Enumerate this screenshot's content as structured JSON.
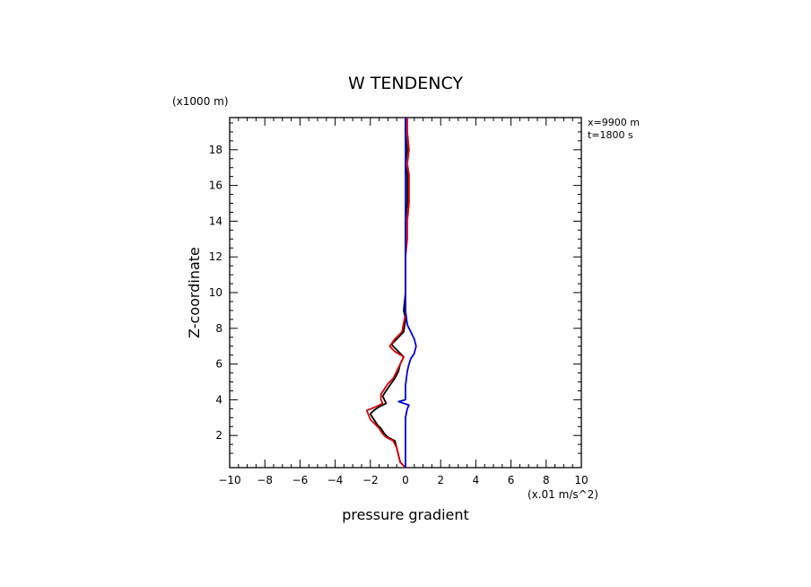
{
  "chart_data": {
    "type": "line",
    "title": "W TENDENCY",
    "xlabel": "pressure gradient",
    "ylabel": "Z-coordinate",
    "x_unit": "(x.01 m/s^2)",
    "y_unit": "(x1000 m)",
    "annotations": [
      "x=9900 m",
      "t=1800 s"
    ],
    "xlim": [
      -10,
      10
    ],
    "ylim": [
      0.2,
      19.8
    ],
    "xticks": [
      -10,
      -8,
      -6,
      -4,
      -2,
      0,
      2,
      4,
      6,
      8,
      10
    ],
    "yticks": [
      2,
      4,
      6,
      8,
      10,
      12,
      14,
      16,
      18
    ],
    "grid": false,
    "series": [
      {
        "color": "#000000",
        "points": [
          [
            0.0,
            0.2
          ],
          [
            -0.3,
            0.5
          ],
          [
            -0.4,
            0.9
          ],
          [
            -0.5,
            1.3
          ],
          [
            -0.6,
            1.7
          ],
          [
            -1.0,
            1.9
          ],
          [
            -1.2,
            2.1
          ],
          [
            -1.4,
            2.4
          ],
          [
            -1.6,
            2.6
          ],
          [
            -1.8,
            2.9
          ],
          [
            -2.0,
            3.2
          ],
          [
            -1.8,
            3.4
          ],
          [
            -1.5,
            3.6
          ],
          [
            -1.1,
            3.8
          ],
          [
            -1.2,
            4.0
          ],
          [
            -1.3,
            4.2
          ],
          [
            -1.1,
            4.5
          ],
          [
            -0.9,
            4.8
          ],
          [
            -0.6,
            5.2
          ],
          [
            -0.4,
            5.6
          ],
          [
            -0.3,
            6.0
          ],
          [
            -0.1,
            6.4
          ],
          [
            -0.5,
            6.8
          ],
          [
            -0.8,
            7.1
          ],
          [
            -0.5,
            7.4
          ],
          [
            -0.1,
            7.8
          ],
          [
            0.0,
            8.5
          ],
          [
            -0.1,
            9.0
          ],
          [
            0.0,
            10.0
          ],
          [
            0.0,
            11.0
          ],
          [
            0.0,
            12.0
          ],
          [
            0.0,
            13.0
          ],
          [
            0.0,
            14.0
          ],
          [
            0.1,
            15.0
          ],
          [
            0.1,
            15.8
          ],
          [
            0.1,
            16.6
          ],
          [
            0.0,
            17.2
          ],
          [
            0.1,
            18.0
          ],
          [
            0.0,
            19.0
          ],
          [
            0.0,
            19.8
          ]
        ]
      },
      {
        "color": "#dd0000",
        "points": [
          [
            0.0,
            0.2
          ],
          [
            -0.3,
            0.5
          ],
          [
            -0.4,
            0.9
          ],
          [
            -0.5,
            1.3
          ],
          [
            -0.7,
            1.7
          ],
          [
            -1.1,
            1.9
          ],
          [
            -1.3,
            2.1
          ],
          [
            -1.5,
            2.4
          ],
          [
            -1.7,
            2.6
          ],
          [
            -2.0,
            2.9
          ],
          [
            -2.2,
            3.4
          ],
          [
            -1.7,
            3.6
          ],
          [
            -1.3,
            3.8
          ],
          [
            -1.4,
            4.0
          ],
          [
            -1.4,
            4.3
          ],
          [
            -1.2,
            4.6
          ],
          [
            -1.0,
            4.9
          ],
          [
            -0.7,
            5.2
          ],
          [
            -0.5,
            5.6
          ],
          [
            -0.3,
            6.0
          ],
          [
            -0.1,
            6.4
          ],
          [
            -0.6,
            6.7
          ],
          [
            -0.9,
            7.0
          ],
          [
            -0.6,
            7.4
          ],
          [
            -0.2,
            7.8
          ],
          [
            -0.1,
            8.3
          ],
          [
            0.0,
            8.8
          ],
          [
            0.0,
            10.0
          ],
          [
            0.0,
            11.0
          ],
          [
            0.0,
            12.0
          ],
          [
            0.1,
            13.0
          ],
          [
            0.1,
            14.0
          ],
          [
            0.2,
            15.0
          ],
          [
            0.2,
            15.8
          ],
          [
            0.2,
            16.6
          ],
          [
            0.1,
            17.2
          ],
          [
            0.2,
            18.0
          ],
          [
            0.1,
            19.0
          ],
          [
            0.1,
            19.8
          ]
        ]
      },
      {
        "color": "#0000dd",
        "points": [
          [
            0.0,
            0.2
          ],
          [
            0.0,
            1.0
          ],
          [
            0.0,
            2.0
          ],
          [
            0.0,
            3.0
          ],
          [
            0.1,
            3.5
          ],
          [
            0.2,
            3.7
          ],
          [
            -0.1,
            3.8
          ],
          [
            -0.4,
            3.9
          ],
          [
            0.0,
            4.0
          ],
          [
            0.0,
            4.8
          ],
          [
            0.1,
            5.6
          ],
          [
            0.2,
            6.0
          ],
          [
            0.3,
            6.3
          ],
          [
            0.5,
            6.6
          ],
          [
            0.6,
            7.0
          ],
          [
            0.5,
            7.4
          ],
          [
            0.3,
            7.8
          ],
          [
            0.1,
            8.2
          ],
          [
            0.0,
            9.0
          ],
          [
            0.0,
            10.0
          ],
          [
            0.0,
            11.0
          ],
          [
            0.0,
            12.0
          ],
          [
            0.0,
            13.0
          ],
          [
            0.0,
            14.0
          ],
          [
            0.0,
            15.0
          ],
          [
            0.0,
            16.0
          ],
          [
            0.0,
            17.0
          ],
          [
            0.0,
            18.0
          ],
          [
            0.0,
            19.0
          ],
          [
            0.0,
            19.8
          ]
        ]
      }
    ]
  }
}
